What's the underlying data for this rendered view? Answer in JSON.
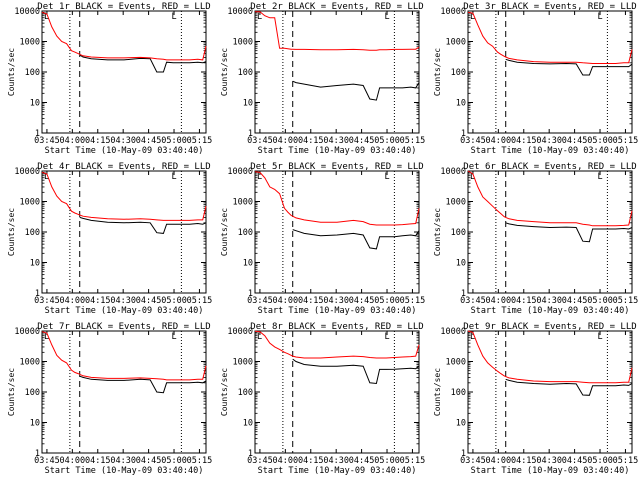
{
  "figure": {
    "title_template": "Det {n}r BLACK = Events, RED = LLD",
    "xlabel": "Start Time (10-May-09 03:40:40)",
    "ylabel": "Counts/sec",
    "x_ticks": [
      "03:45",
      "04:00",
      "04:15",
      "04:30",
      "04:45",
      "05:00",
      "05:15"
    ],
    "y_ticks": [
      "1",
      "10",
      "100",
      "1000",
      "10000"
    ],
    "corner_marker": "L",
    "colors": {
      "events": "#000000",
      "lld": "#ff0000",
      "axes": "#000000"
    }
  },
  "chart_data": [
    {
      "type": "line",
      "title": "Det 1r BLACK = Events, RED = LLD",
      "xlabel": "Start Time (10-May-09 03:40:40)",
      "ylabel": "Counts/sec",
      "yscale": "log",
      "ylim": [
        1,
        10000
      ],
      "xlim_minutes": [
        0,
        100
      ],
      "vlines": {
        "dotted_minutes": [
          17,
          85
        ],
        "dashed_minutes": [
          23
        ]
      },
      "x_minutes": [
        0,
        3,
        6,
        9,
        12,
        15,
        18,
        20,
        22,
        23,
        25,
        30,
        40,
        50,
        60,
        66,
        70,
        74,
        76,
        80,
        85,
        90,
        95,
        98,
        100
      ],
      "series": [
        {
          "name": "Events",
          "values": [
            null,
            null,
            null,
            null,
            null,
            null,
            null,
            null,
            null,
            360,
            310,
            270,
            250,
            250,
            280,
            270,
            100,
            100,
            210,
            200,
            200,
            200,
            210,
            200,
            220
          ]
        },
        {
          "name": "LLD",
          "values": [
            9000,
            8000,
            3000,
            1500,
            1000,
            850,
            500,
            450,
            400,
            380,
            340,
            310,
            290,
            290,
            300,
            290,
            270,
            260,
            250,
            250,
            250,
            250,
            260,
            250,
            700
          ]
        }
      ]
    },
    {
      "type": "line",
      "title": "Det 2r BLACK = Events, RED = LLD",
      "xlabel": "Start Time (10-May-09 03:40:40)",
      "ylabel": "Counts/sec",
      "yscale": "log",
      "ylim": [
        1,
        10000
      ],
      "xlim_minutes": [
        0,
        100
      ],
      "vlines": {
        "dotted_minutes": [
          17,
          85
        ],
        "dashed_minutes": [
          23
        ]
      },
      "x_minutes": [
        0,
        3,
        6,
        9,
        12,
        15,
        18,
        20,
        22,
        23,
        25,
        30,
        40,
        50,
        60,
        66,
        70,
        74,
        76,
        80,
        85,
        90,
        95,
        98,
        100
      ],
      "series": [
        {
          "name": "Events",
          "values": [
            null,
            null,
            null,
            null,
            null,
            null,
            null,
            null,
            null,
            50,
            45,
            40,
            32,
            36,
            40,
            36,
            13,
            12,
            30,
            30,
            30,
            30,
            32,
            30,
            45
          ]
        },
        {
          "name": "LLD",
          "values": [
            9500,
            9500,
            7000,
            6000,
            6000,
            600,
            600,
            580,
            560,
            560,
            550,
            550,
            540,
            540,
            550,
            540,
            520,
            520,
            540,
            540,
            550,
            550,
            560,
            560,
            650
          ]
        }
      ]
    },
    {
      "type": "line",
      "title": "Det 3r BLACK = Events, RED = LLD",
      "xlabel": "Start Time (10-May-09 03:40:40)",
      "ylabel": "Counts/sec",
      "yscale": "log",
      "ylim": [
        1,
        10000
      ],
      "xlim_minutes": [
        0,
        100
      ],
      "vlines": {
        "dotted_minutes": [
          17,
          85
        ],
        "dashed_minutes": [
          23
        ]
      },
      "x_minutes": [
        0,
        3,
        6,
        9,
        12,
        15,
        18,
        20,
        22,
        23,
        25,
        30,
        40,
        50,
        60,
        66,
        70,
        74,
        76,
        80,
        85,
        90,
        95,
        98,
        100
      ],
      "series": [
        {
          "name": "Events",
          "values": [
            null,
            null,
            null,
            null,
            null,
            null,
            null,
            null,
            null,
            260,
            240,
            210,
            190,
            185,
            190,
            185,
            80,
            80,
            150,
            150,
            150,
            150,
            150,
            150,
            180
          ]
        },
        {
          "name": "LLD",
          "values": [
            9000,
            8500,
            3500,
            1500,
            900,
            700,
            450,
            380,
            330,
            310,
            280,
            250,
            220,
            210,
            210,
            210,
            200,
            195,
            190,
            190,
            190,
            190,
            200,
            200,
            550
          ]
        }
      ]
    },
    {
      "type": "line",
      "title": "Det 4r BLACK = Events, RED = LLD",
      "xlabel": "Start Time (10-May-09 03:40:40)",
      "ylabel": "Counts/sec",
      "yscale": "log",
      "ylim": [
        1,
        10000
      ],
      "xlim_minutes": [
        0,
        100
      ],
      "vlines": {
        "dotted_minutes": [
          17,
          85
        ],
        "dashed_minutes": [
          23
        ]
      },
      "x_minutes": [
        0,
        3,
        6,
        9,
        12,
        15,
        18,
        20,
        22,
        23,
        25,
        30,
        40,
        50,
        60,
        66,
        70,
        74,
        76,
        80,
        85,
        90,
        95,
        98,
        100
      ],
      "series": [
        {
          "name": "Events",
          "values": [
            null,
            null,
            null,
            null,
            null,
            null,
            null,
            null,
            null,
            300,
            280,
            240,
            210,
            200,
            210,
            200,
            95,
            90,
            180,
            180,
            180,
            180,
            190,
            180,
            200
          ]
        },
        {
          "name": "LLD",
          "values": [
            9000,
            8000,
            3000,
            1500,
            1000,
            850,
            480,
            420,
            380,
            360,
            330,
            300,
            270,
            260,
            270,
            260,
            250,
            240,
            240,
            240,
            240,
            240,
            250,
            250,
            700
          ]
        }
      ]
    },
    {
      "type": "line",
      "title": "Det 5r BLACK = Events, RED = LLD",
      "xlabel": "Start Time (10-May-09 03:40:40)",
      "ylabel": "Counts/sec",
      "yscale": "log",
      "ylim": [
        1,
        10000
      ],
      "xlim_minutes": [
        0,
        100
      ],
      "vlines": {
        "dotted_minutes": [
          17,
          85
        ],
        "dashed_minutes": [
          23
        ]
      },
      "x_minutes": [
        0,
        3,
        6,
        9,
        12,
        15,
        18,
        20,
        22,
        23,
        25,
        30,
        40,
        50,
        60,
        66,
        70,
        74,
        76,
        80,
        85,
        90,
        95,
        98,
        100
      ],
      "series": [
        {
          "name": "Events",
          "values": [
            null,
            null,
            null,
            null,
            null,
            null,
            null,
            null,
            null,
            120,
            110,
            90,
            75,
            80,
            90,
            80,
            30,
            28,
            70,
            70,
            70,
            75,
            80,
            75,
            110
          ]
        },
        {
          "name": "LLD",
          "values": [
            9500,
            9000,
            6000,
            3000,
            2500,
            1800,
            600,
            450,
            350,
            330,
            290,
            250,
            210,
            210,
            240,
            220,
            180,
            170,
            170,
            170,
            170,
            175,
            185,
            190,
            600
          ]
        }
      ]
    },
    {
      "type": "line",
      "title": "Det 6r BLACK = Events, RED = LLD",
      "xlabel": "Start Time (10-May-09 03:40:40)",
      "ylabel": "Counts/sec",
      "yscale": "log",
      "ylim": [
        1,
        10000
      ],
      "xlim_minutes": [
        0,
        100
      ],
      "vlines": {
        "dotted_minutes": [
          17,
          85
        ],
        "dashed_minutes": [
          23
        ]
      },
      "x_minutes": [
        0,
        3,
        6,
        9,
        12,
        15,
        18,
        20,
        22,
        23,
        25,
        30,
        40,
        50,
        60,
        66,
        70,
        74,
        76,
        80,
        85,
        90,
        95,
        98,
        100
      ],
      "series": [
        {
          "name": "Events",
          "values": [
            null,
            null,
            null,
            null,
            null,
            null,
            null,
            null,
            null,
            200,
            185,
            165,
            150,
            140,
            145,
            140,
            50,
            48,
            125,
            125,
            125,
            125,
            130,
            125,
            140
          ]
        },
        {
          "name": "LLD",
          "values": [
            10000,
            8000,
            3000,
            1400,
            1000,
            700,
            500,
            400,
            320,
            300,
            270,
            240,
            220,
            200,
            200,
            200,
            180,
            170,
            160,
            160,
            160,
            160,
            165,
            170,
            500
          ]
        }
      ]
    },
    {
      "type": "line",
      "title": "Det 7r BLACK = Events, RED = LLD",
      "xlabel": "Start Time (10-May-09 03:40:40)",
      "ylabel": "Counts/sec",
      "yscale": "log",
      "ylim": [
        1,
        10000
      ],
      "xlim_minutes": [
        0,
        100
      ],
      "vlines": {
        "dotted_minutes": [
          17,
          85
        ],
        "dashed_minutes": [
          23
        ]
      },
      "x_minutes": [
        0,
        3,
        6,
        9,
        12,
        15,
        18,
        20,
        22,
        23,
        25,
        30,
        40,
        50,
        60,
        66,
        70,
        74,
        76,
        80,
        85,
        90,
        95,
        98,
        100
      ],
      "series": [
        {
          "name": "Events",
          "values": [
            null,
            null,
            null,
            null,
            null,
            null,
            null,
            null,
            null,
            330,
            300,
            260,
            240,
            240,
            260,
            250,
            100,
            95,
            200,
            200,
            200,
            200,
            210,
            200,
            230
          ]
        },
        {
          "name": "LLD",
          "values": [
            9500,
            8500,
            3500,
            1600,
            1100,
            900,
            520,
            440,
            400,
            380,
            340,
            300,
            280,
            280,
            290,
            280,
            270,
            260,
            250,
            250,
            250,
            250,
            260,
            260,
            720
          ]
        }
      ]
    },
    {
      "type": "line",
      "title": "Det 8r BLACK = Events, RED = LLD",
      "xlabel": "Start Time (10-May-09 03:40:40)",
      "ylabel": "Counts/sec",
      "yscale": "log",
      "ylim": [
        1,
        10000
      ],
      "xlim_minutes": [
        0,
        100
      ],
      "vlines": {
        "dotted_minutes": [
          17,
          85
        ],
        "dashed_minutes": [
          23
        ]
      },
      "x_minutes": [
        0,
        3,
        6,
        9,
        12,
        15,
        18,
        20,
        22,
        23,
        25,
        30,
        40,
        50,
        60,
        66,
        70,
        74,
        76,
        80,
        85,
        90,
        95,
        98,
        100
      ],
      "series": [
        {
          "name": "Events",
          "values": [
            null,
            null,
            null,
            null,
            null,
            null,
            null,
            null,
            null,
            1200,
            1000,
            800,
            700,
            700,
            750,
            700,
            200,
            190,
            550,
            550,
            560,
            580,
            600,
            580,
            700
          ]
        },
        {
          "name": "LLD",
          "values": [
            9800,
            9500,
            7000,
            4000,
            3000,
            2500,
            2000,
            1800,
            1600,
            1500,
            1400,
            1300,
            1300,
            1400,
            1500,
            1450,
            1350,
            1300,
            1300,
            1300,
            1350,
            1400,
            1450,
            1500,
            3500
          ]
        }
      ]
    },
    {
      "type": "line",
      "title": "Det 9r BLACK = Events, RED = LLD",
      "xlabel": "Start Time (10-May-09 03:40:40)",
      "ylabel": "Counts/sec",
      "yscale": "log",
      "ylim": [
        1,
        10000
      ],
      "xlim_minutes": [
        0,
        100
      ],
      "vlines": {
        "dotted_minutes": [
          17,
          85
        ],
        "dashed_minutes": [
          23
        ]
      },
      "x_minutes": [
        0,
        3,
        6,
        9,
        12,
        15,
        18,
        20,
        22,
        23,
        25,
        30,
        40,
        50,
        60,
        66,
        70,
        74,
        76,
        80,
        85,
        90,
        95,
        98,
        100
      ],
      "series": [
        {
          "name": "Events",
          "values": [
            null,
            null,
            null,
            null,
            null,
            null,
            null,
            null,
            null,
            260,
            240,
            210,
            190,
            180,
            190,
            185,
            80,
            78,
            160,
            160,
            160,
            160,
            170,
            165,
            190
          ]
        },
        {
          "name": "LLD",
          "values": [
            10000,
            9000,
            3500,
            1500,
            900,
            650,
            480,
            400,
            340,
            320,
            290,
            260,
            230,
            220,
            220,
            220,
            210,
            200,
            200,
            200,
            200,
            200,
            210,
            210,
            620
          ]
        }
      ]
    }
  ]
}
